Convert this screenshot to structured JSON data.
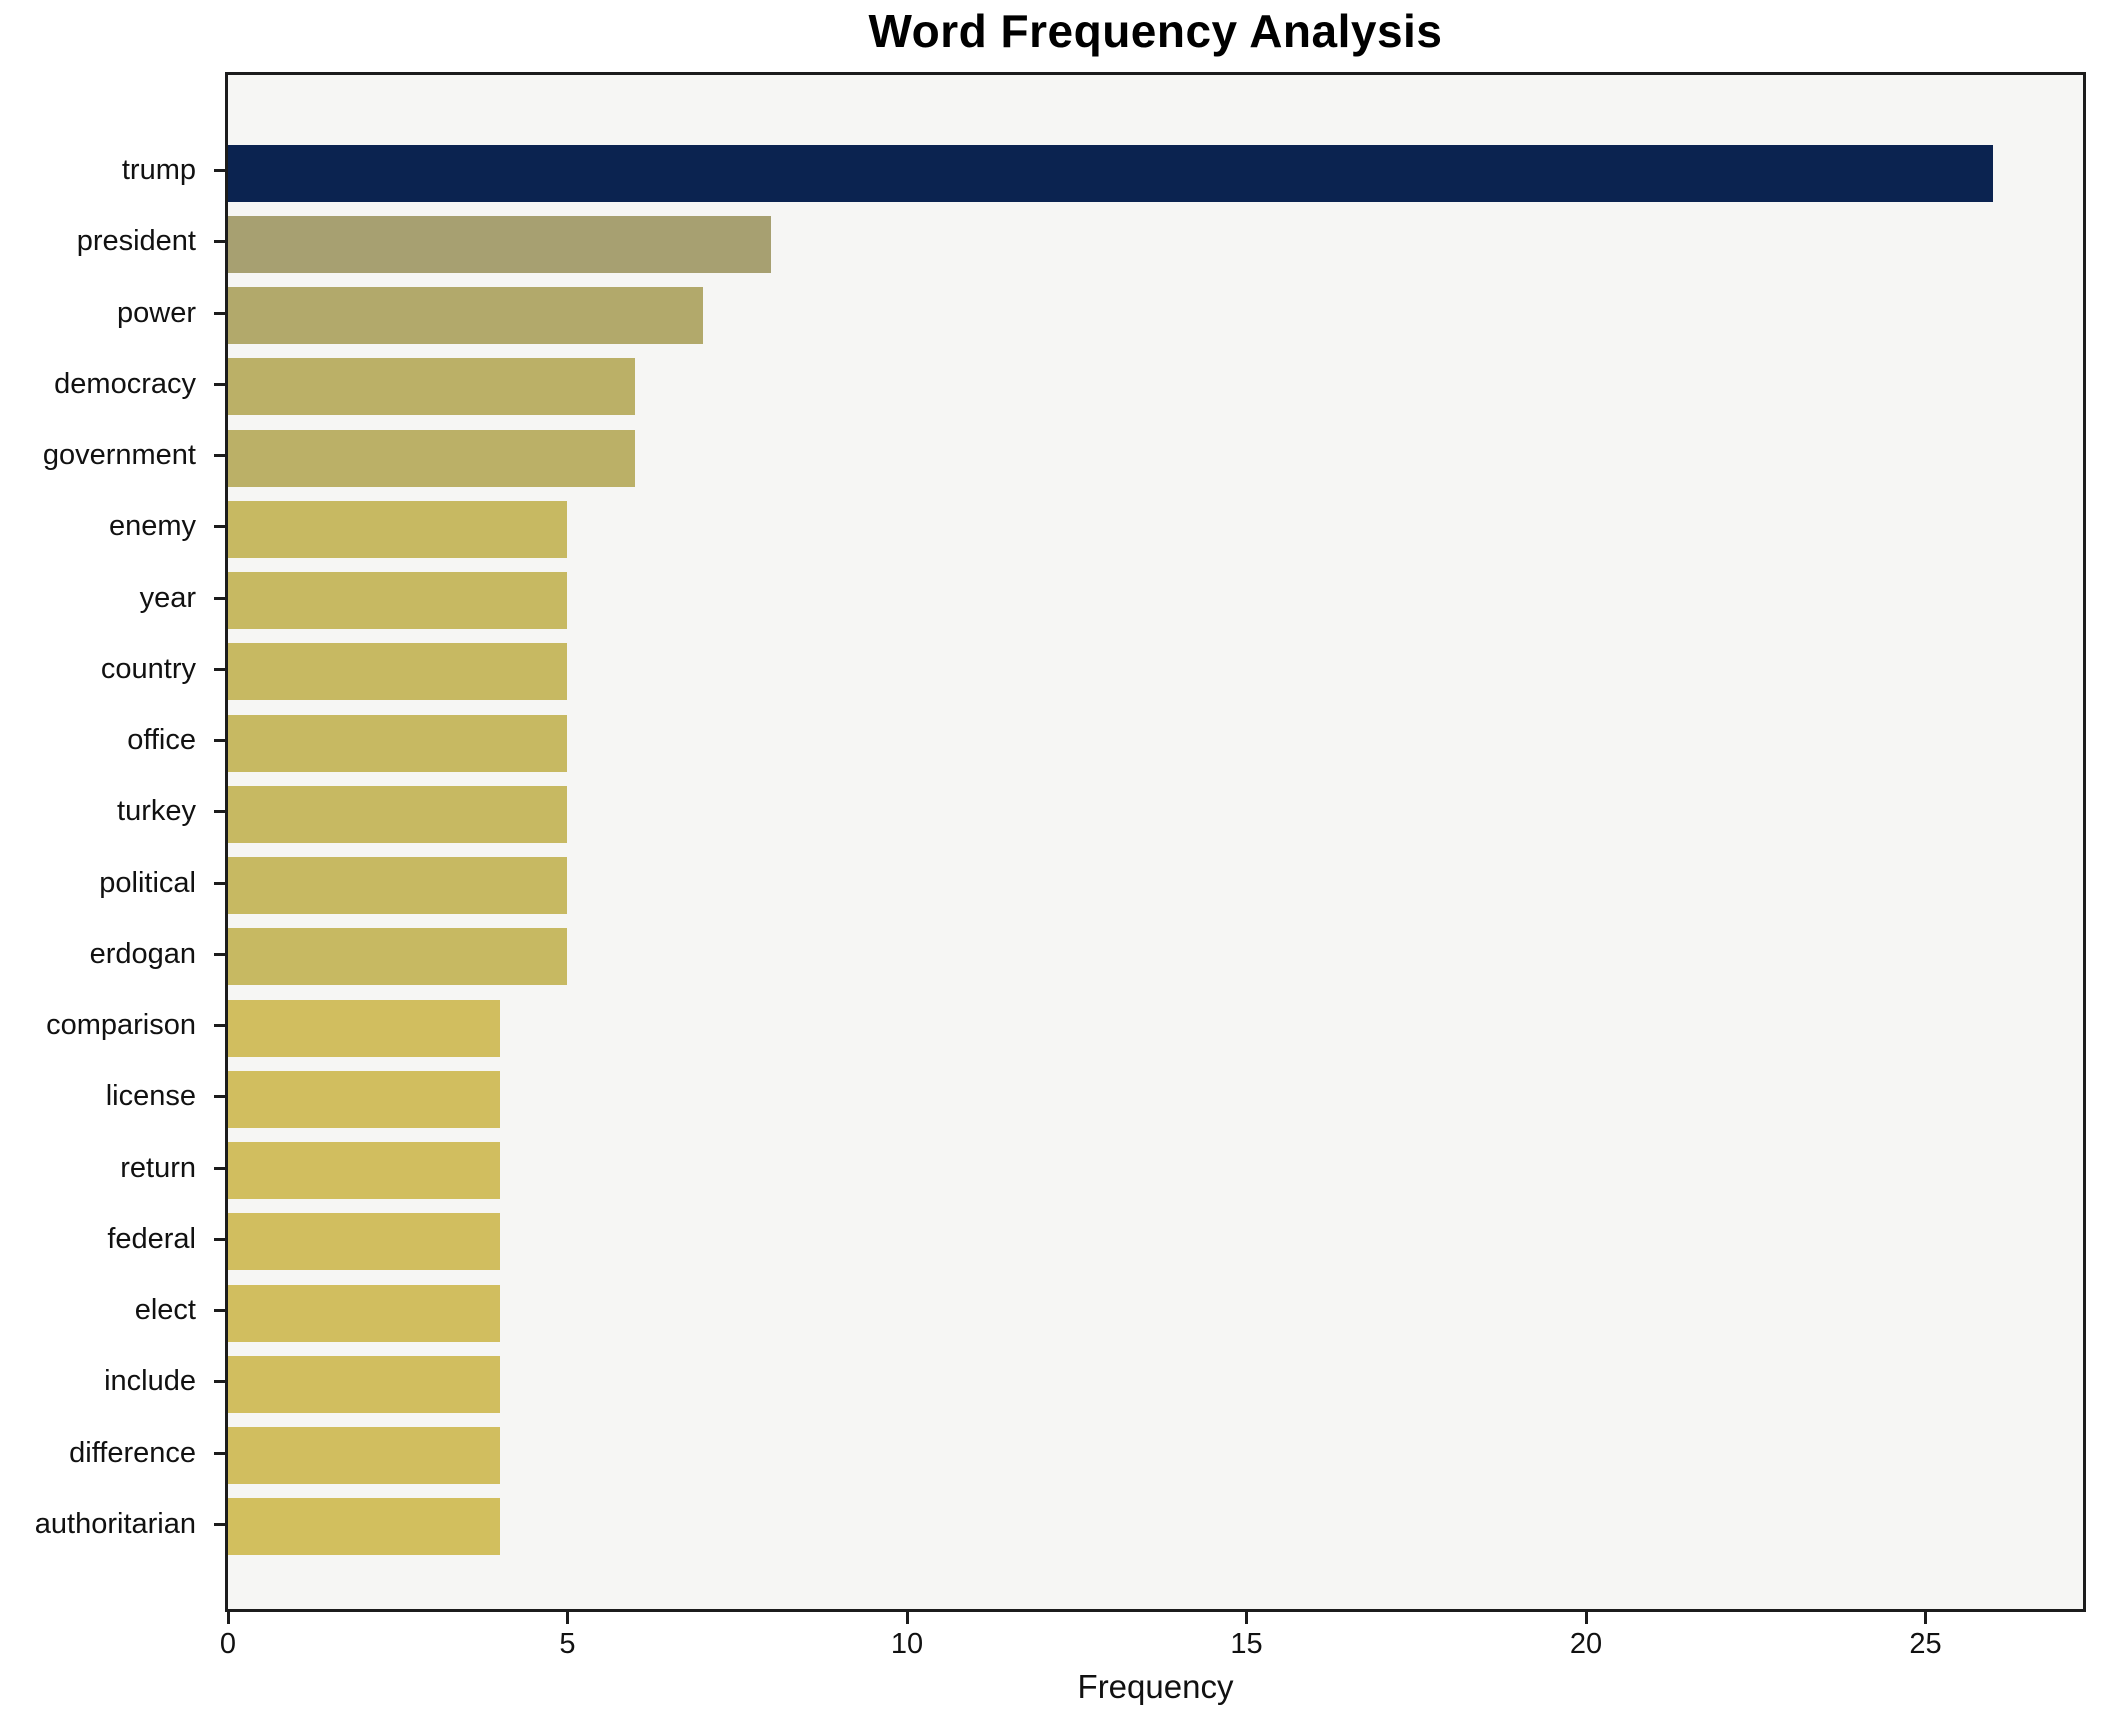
{
  "chart_data": {
    "type": "bar",
    "orientation": "horizontal",
    "title": "Word Frequency Analysis",
    "xlabel": "Frequency",
    "ylabel": "",
    "categories": [
      "trump",
      "president",
      "power",
      "democracy",
      "government",
      "enemy",
      "year",
      "country",
      "office",
      "turkey",
      "political",
      "erdogan",
      "comparison",
      "license",
      "return",
      "federal",
      "elect",
      "include",
      "difference",
      "authoritarian"
    ],
    "values": [
      26,
      8,
      7,
      6,
      6,
      5,
      5,
      5,
      5,
      5,
      5,
      5,
      4,
      4,
      4,
      4,
      4,
      4,
      4,
      4
    ],
    "bar_colors": [
      "#0b2350",
      "#a7a071",
      "#b2a96b",
      "#bbb067",
      "#bbb067",
      "#c7b962",
      "#c7b962",
      "#c7b962",
      "#c7b962",
      "#c7b962",
      "#c7b962",
      "#c7b962",
      "#d1be5f",
      "#d1be5f",
      "#d1be5f",
      "#d1be5f",
      "#d1be5f",
      "#d1be5f",
      "#d1be5f",
      "#d2bf5e"
    ],
    "xticks": [
      0,
      5,
      10,
      15,
      20,
      25
    ],
    "xlim": [
      0,
      27.32
    ],
    "grid": false,
    "legend": false,
    "plot_background": "#f6f6f4",
    "figure_background": "#ffffff",
    "spine_color": "#1c1c1c",
    "text_color": "#111111"
  }
}
